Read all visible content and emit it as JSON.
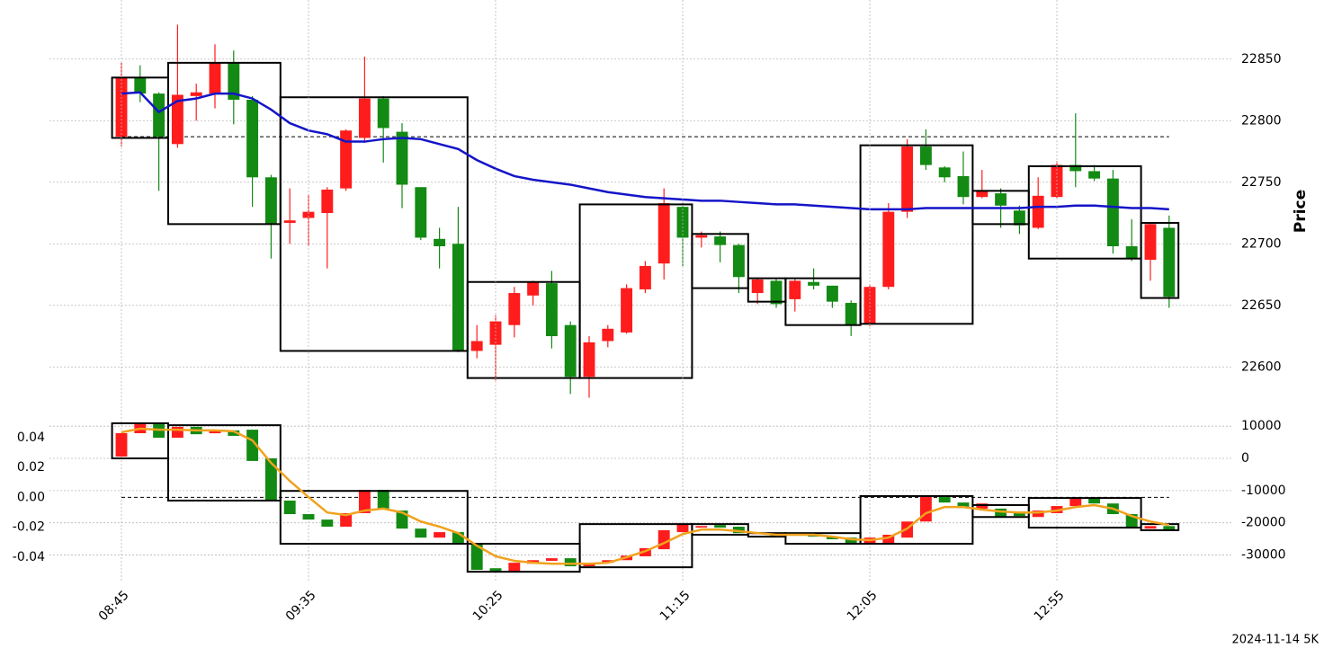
{
  "chart_data": [
    {
      "type": "candlestick",
      "ylabel": "Price",
      "up_color": "#ff1c1c",
      "down_color": "#138a13",
      "grid": true,
      "ylim": [
        22571,
        22898
      ],
      "yticks": [
        22600,
        22650,
        22700,
        22750,
        22800,
        22850
      ],
      "open": [
        22787,
        22835,
        22822,
        22781,
        22820,
        22822,
        22847,
        22817,
        22754,
        22717,
        22721,
        22725,
        22745,
        22786,
        22818,
        22791,
        22746,
        22704,
        22700,
        22613,
        22618,
        22634,
        22658,
        22668,
        22634,
        22592,
        22621,
        22628,
        22663,
        22684,
        22730,
        22705,
        22706,
        22699,
        22660,
        22670,
        22655,
        22669,
        22666,
        22652,
        22635,
        22665,
        22726,
        22779,
        22762,
        22755,
        22738,
        22741,
        22727,
        22713,
        22738,
        22764,
        22759,
        22753,
        22698,
        22687,
        22713
      ],
      "high": [
        22847,
        22845,
        22823,
        22878,
        22830,
        22862,
        22857,
        22820,
        22756,
        22745,
        22740,
        22746,
        22793,
        22852,
        22820,
        22798,
        22746,
        22713,
        22730,
        22634,
        22642,
        22665,
        22670,
        22678,
        22637,
        22625,
        22634,
        22667,
        22686,
        22745,
        22733,
        22710,
        22710,
        22700,
        22672,
        22672,
        22672,
        22680,
        22666,
        22654,
        22667,
        22733,
        22785,
        22793,
        22763,
        22775,
        22760,
        22745,
        22731,
        22754,
        22767,
        22806,
        22764,
        22760,
        22720,
        22717,
        22723
      ],
      "low": [
        22779,
        22815,
        22743,
        22778,
        22800,
        22810,
        22797,
        22730,
        22688,
        22700,
        22698,
        22680,
        22743,
        22782,
        22766,
        22729,
        22703,
        22680,
        22612,
        22607,
        22589,
        22624,
        22650,
        22615,
        22578,
        22575,
        22616,
        22627,
        22660,
        22671,
        22682,
        22697,
        22685,
        22660,
        22651,
        22648,
        22645,
        22663,
        22648,
        22625,
        22633,
        22663,
        22721,
        22760,
        22750,
        22732,
        22737,
        22713,
        22708,
        22712,
        22737,
        22746,
        22751,
        22692,
        22686,
        22670,
        22648
      ],
      "close": [
        22835,
        22822,
        22787,
        22821,
        22823,
        22847,
        22817,
        22754,
        22716,
        22719,
        22726,
        22744,
        22792,
        22818,
        22794,
        22748,
        22705,
        22698,
        22613,
        22621,
        22637,
        22660,
        22669,
        22625,
        22592,
        22620,
        22631,
        22664,
        22682,
        22733,
        22705,
        22707,
        22699,
        22673,
        22671,
        22651,
        22670,
        22666,
        22653,
        22634,
        22665,
        22726,
        22779,
        22764,
        22754,
        22738,
        22743,
        22731,
        22715,
        22739,
        22764,
        22759,
        22753,
        22698,
        22688,
        22716,
        22657
      ],
      "ma": {
        "color": "#1414c8",
        "values": [
          22822,
          22823,
          22807,
          22816,
          22818,
          22822,
          22822,
          22818,
          22809,
          22798,
          22792,
          22789,
          22783,
          22783,
          22785,
          22786,
          22785,
          22781,
          22777,
          22768,
          22761,
          22755,
          22752,
          22750,
          22748,
          22745,
          22742,
          22740,
          22738,
          22737,
          22736,
          22735,
          22735,
          22734,
          22733,
          22732,
          22732,
          22731,
          22730,
          22729,
          22728,
          22728,
          22728,
          22729,
          22729,
          22729,
          22729,
          22729,
          22729,
          22730,
          22730,
          22731,
          22731,
          22730,
          22729,
          22729,
          22728
        ]
      },
      "reference_line": 22787,
      "boxes": [
        {
          "start": 0,
          "end": 2,
          "top": 22835,
          "bottom": 22786
        },
        {
          "start": 3,
          "end": 8,
          "top": 22847,
          "bottom": 22716
        },
        {
          "start": 9,
          "end": 18,
          "top": 22819,
          "bottom": 22613
        },
        {
          "start": 19,
          "end": 24,
          "top": 22669,
          "bottom": 22591
        },
        {
          "start": 25,
          "end": 30,
          "top": 22732,
          "bottom": 22591
        },
        {
          "start": 31,
          "end": 33,
          "top": 22708,
          "bottom": 22664
        },
        {
          "start": 34,
          "end": 35,
          "top": 22672,
          "bottom": 22653
        },
        {
          "start": 36,
          "end": 39,
          "top": 22672,
          "bottom": 22634
        },
        {
          "start": 40,
          "end": 45,
          "top": 22780,
          "bottom": 22635
        },
        {
          "start": 46,
          "end": 48,
          "top": 22743,
          "bottom": 22716
        },
        {
          "start": 49,
          "end": 54,
          "top": 22763,
          "bottom": 22688
        },
        {
          "start": 55,
          "end": 56,
          "top": 22717,
          "bottom": 22656
        }
      ]
    },
    {
      "type": "candlestick",
      "up_color": "#ff1c1c",
      "down_color": "#138a13",
      "grid": true,
      "categories": [
        "08:45",
        null,
        null,
        null,
        null,
        null,
        null,
        null,
        null,
        null,
        "09:35",
        null,
        null,
        null,
        null,
        null,
        null,
        null,
        null,
        null,
        "10:25",
        null,
        null,
        null,
        null,
        null,
        null,
        null,
        null,
        null,
        "11:15",
        null,
        null,
        null,
        null,
        null,
        null,
        null,
        null,
        null,
        "12:05",
        null,
        null,
        null,
        null,
        null,
        null,
        null,
        null,
        null,
        "12:55",
        null,
        null,
        null,
        null,
        null,
        null
      ],
      "ylim": [
        -0.057,
        0.055
      ],
      "yticks": [
        0.04,
        0.02,
        {
          "value": 0,
          "label": "0.00"
        },
        -0.02,
        -0.04
      ],
      "y2lim": [
        -38500,
        13400
      ],
      "y2ticks": [
        10000,
        0,
        -10000,
        -20000,
        -30000
      ],
      "axis": "y2",
      "open": [
        560,
        7820,
        10600,
        6400,
        9800,
        7800,
        8700,
        8900,
        0,
        -13100,
        -17300,
        -19000,
        -21200,
        -17000,
        -9800,
        -16200,
        -21800,
        -24600,
        -22900,
        -26500,
        -34100,
        -35200,
        -32700,
        -31800,
        -31000,
        -33500,
        -32400,
        -31600,
        -30400,
        -28200,
        -22900,
        -21500,
        -20700,
        -21200,
        -23500,
        -23200,
        -24000,
        -23500,
        -24300,
        -24600,
        -26500,
        -26500,
        -24600,
        -19600,
        -12000,
        -13700,
        -15600,
        -15600,
        -17000,
        -18200,
        -17000,
        -14800,
        -12300,
        -14000,
        -17300,
        -21800,
        -21000
      ],
      "close": [
        7820,
        10600,
        6400,
        9800,
        7500,
        8700,
        7000,
        -800,
        -13100,
        -17300,
        -19000,
        -21200,
        -17000,
        -9800,
        -15600,
        -21800,
        -24600,
        -22900,
        -26500,
        -34600,
        -35200,
        -32400,
        -31600,
        -31000,
        -33500,
        -32400,
        -31600,
        -30200,
        -27900,
        -22300,
        -20400,
        -21000,
        -21500,
        -23200,
        -22900,
        -24000,
        -23500,
        -24300,
        -25100,
        -26300,
        -24600,
        -23700,
        -19600,
        -12000,
        -13700,
        -15400,
        -14000,
        -18200,
        -17900,
        -16200,
        -14800,
        -12300,
        -14000,
        -17300,
        -21500,
        -21000,
        -22300
      ],
      "line": {
        "color": "#f0a21e",
        "values": [
          8100,
          9200,
          8900,
          8900,
          8700,
          8700,
          8400,
          5600,
          -1400,
          -7000,
          -12000,
          -16800,
          -17600,
          -16200,
          -15600,
          -16800,
          -19600,
          -21200,
          -23200,
          -27100,
          -30400,
          -31800,
          -32400,
          -32700,
          -32700,
          -32700,
          -32400,
          -30700,
          -28800,
          -26300,
          -23500,
          -22100,
          -22100,
          -22600,
          -23200,
          -23700,
          -23700,
          -23700,
          -24300,
          -25100,
          -25400,
          -24600,
          -21800,
          -17000,
          -15100,
          -15100,
          -15900,
          -16500,
          -16800,
          -16800,
          -16200,
          -15100,
          -14500,
          -15600,
          -17900,
          -19600,
          -20700
        ]
      },
      "reference_line": 0,
      "boxes": [
        {
          "start": 0,
          "end": 2,
          "top": 10900,
          "bottom": 0
        },
        {
          "start": 3,
          "end": 8,
          "top": 10300,
          "bottom": -13100
        },
        {
          "start": 9,
          "end": 18,
          "top": -10100,
          "bottom": -26500
        },
        {
          "start": 19,
          "end": 24,
          "top": -26500,
          "bottom": -35200
        },
        {
          "start": 25,
          "end": 30,
          "top": -20400,
          "bottom": -33800
        },
        {
          "start": 31,
          "end": 33,
          "top": -20400,
          "bottom": -23700
        },
        {
          "start": 34,
          "end": 35,
          "top": -23200,
          "bottom": -24300
        },
        {
          "start": 36,
          "end": 39,
          "top": -23200,
          "bottom": -26500
        },
        {
          "start": 40,
          "end": 45,
          "top": -11700,
          "bottom": -26500
        },
        {
          "start": 46,
          "end": 48,
          "top": -14500,
          "bottom": -18200
        },
        {
          "start": 49,
          "end": 54,
          "top": -12300,
          "bottom": -21500
        },
        {
          "start": 55,
          "end": 56,
          "top": -20400,
          "bottom": -22300
        }
      ]
    }
  ],
  "footer": "2024-11-14 5K"
}
